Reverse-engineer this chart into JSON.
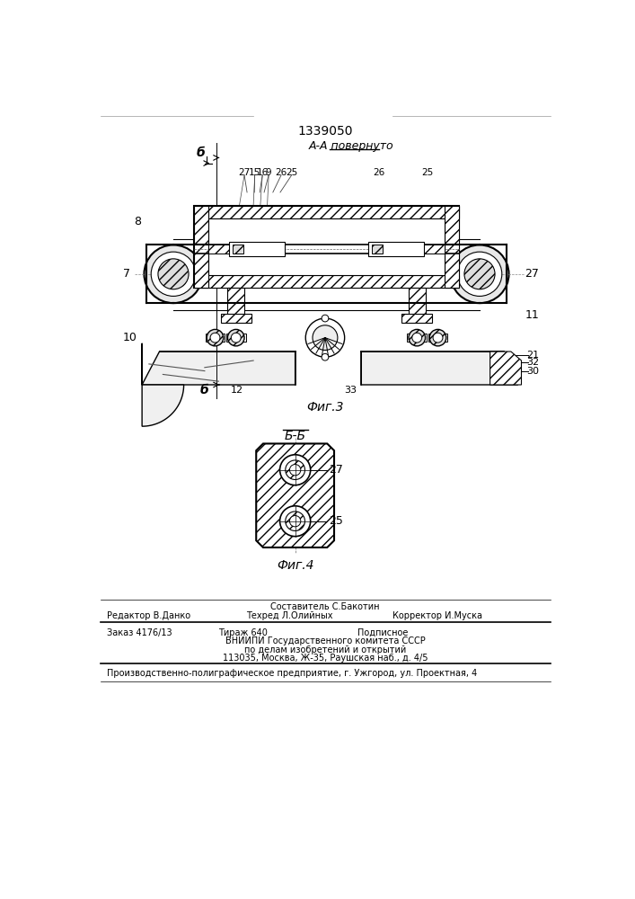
{
  "patent_number": "1339050",
  "fig3_label": "Фиг.3",
  "fig4_label": "Фиг.4",
  "section_bb": "Б-Б",
  "section_aa": "А-А повернуто",
  "footer_line1_center": "Составитель С.Бакотин",
  "footer_line2_left": "Редактор В.Данко",
  "footer_line2_center": "Техред Л.Олийных",
  "footer_line2_right": "Корректор И.Муска",
  "footer_line3_left": "Заказ 4176/13",
  "footer_line3_center": "Тираж 640",
  "footer_line3_right": "Подписное",
  "footer_line4": "ВНИИПИ Государственного комитета СССР",
  "footer_line5": "по делам изобретений и открытий",
  "footer_line6": "113035, Москва, Ж-35, Раушская наб., д. 4/5",
  "footer_line7": "Производственно-полиграфическое предприятие, г. Ужгород, ул. Проектная, 4",
  "bg_color": "#ffffff"
}
